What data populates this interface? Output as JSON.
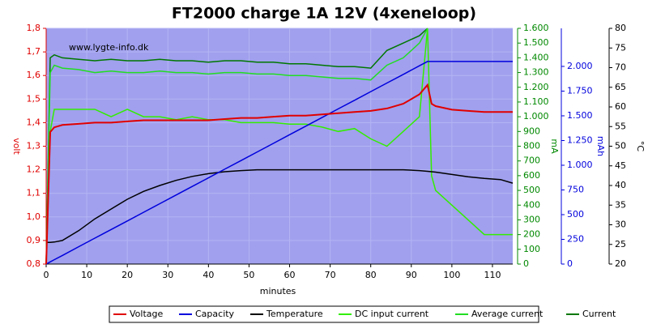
{
  "chart_data": {
    "type": "line",
    "title": "FT2000 charge 1A 12V (4xeneloop)",
    "annotation": "www.lygte-info.dk",
    "xlabel": "minutes",
    "ylabel": "volt",
    "y2label": "mA",
    "y3label": "mAh",
    "y4label": "°C",
    "grid": true,
    "legend": "bottom",
    "background": "#a0a0ee",
    "xlim": [
      0,
      115
    ],
    "xticks": [
      0,
      10,
      20,
      30,
      40,
      50,
      60,
      70,
      80,
      90,
      100,
      110
    ],
    "ylim": [
      0.8,
      1.8
    ],
    "yticks": [
      {
        "value": 0.8,
        "label": "0,8"
      },
      {
        "value": 0.9,
        "label": "0,9"
      },
      {
        "value": 1.0,
        "label": "1,0"
      },
      {
        "value": 1.1,
        "label": "1,1"
      },
      {
        "value": 1.2,
        "label": "1,2"
      },
      {
        "value": 1.3,
        "label": "1,3"
      },
      {
        "value": 1.4,
        "label": "1,4"
      },
      {
        "value": 1.5,
        "label": "1,5"
      },
      {
        "value": 1.6,
        "label": "1,6"
      },
      {
        "value": 1.7,
        "label": "1,7"
      },
      {
        "value": 1.8,
        "label": "1,8"
      }
    ],
    "y2lim": [
      0,
      1600
    ],
    "y2ticks": [
      0,
      100,
      200,
      300,
      400,
      500,
      600,
      700,
      800,
      900,
      {
        "value": 1000,
        "label": "1.000"
      },
      {
        "value": 1100,
        "label": "1.100"
      },
      {
        "value": 1200,
        "label": "1.200"
      },
      {
        "value": 1300,
        "label": "1.300"
      },
      {
        "value": 1400,
        "label": "1.400"
      },
      {
        "value": 1500,
        "label": "1.500"
      },
      {
        "value": 1600,
        "label": "1.600"
      }
    ],
    "y3lim": [
      0,
      2385
    ],
    "y3ticks": [
      0,
      250,
      500,
      750,
      {
        "value": 1000,
        "label": "1.000"
      },
      {
        "value": 1250,
        "label": "1.250"
      },
      {
        "value": 1500,
        "label": "1.500"
      },
      {
        "value": 1750,
        "label": "1.750"
      },
      {
        "value": 2000,
        "label": "2.000"
      }
    ],
    "y4lim": [
      20,
      80
    ],
    "y4ticks": [
      20,
      25,
      30,
      35,
      40,
      45,
      50,
      55,
      60,
      65,
      70,
      75,
      80
    ],
    "x": [
      0,
      1,
      2,
      4,
      8,
      12,
      16,
      20,
      24,
      28,
      32,
      36,
      40,
      44,
      48,
      52,
      56,
      60,
      64,
      68,
      72,
      76,
      80,
      84,
      88,
      92,
      94,
      95,
      96,
      100,
      104,
      108,
      112,
      115
    ],
    "series": [
      {
        "name": "Voltage",
        "color": "#e00000",
        "axis": "y",
        "values": [
          0.8,
          1.36,
          1.38,
          1.39,
          1.395,
          1.4,
          1.4,
          1.405,
          1.41,
          1.41,
          1.41,
          1.41,
          1.41,
          1.415,
          1.42,
          1.42,
          1.425,
          1.43,
          1.43,
          1.435,
          1.44,
          1.445,
          1.45,
          1.46,
          1.48,
          1.52,
          1.56,
          1.48,
          1.47,
          1.455,
          1.45,
          1.445,
          1.445,
          1.445
        ]
      },
      {
        "name": "Capacity",
        "color": "#0000dd",
        "axis": "y3",
        "values": [
          0,
          22,
          44,
          87,
          175,
          262,
          349,
          436,
          524,
          611,
          698,
          785,
          872,
          960,
          1047,
          1134,
          1221,
          1309,
          1396,
          1483,
          1570,
          1657,
          1745,
          1832,
          1919,
          2006,
          2050,
          2050,
          2050,
          2050,
          2050,
          2050,
          2050,
          2050
        ]
      },
      {
        "name": "Temperature",
        "color": "#000000",
        "axis": "y4",
        "values": [
          25.5,
          25.5,
          25.6,
          26,
          28.5,
          31.5,
          34,
          36.5,
          38.5,
          40,
          41.3,
          42.3,
          43,
          43.5,
          43.8,
          44,
          44,
          44,
          44,
          44,
          44,
          44,
          44,
          44,
          44,
          43.8,
          43.6,
          43.5,
          43.4,
          42.8,
          42.2,
          41.8,
          41.5,
          40.6
        ]
      },
      {
        "name": "DC input current",
        "color": "#33ee00",
        "axis": "y2",
        "values": [
          0,
          900,
          1050,
          1050,
          1050,
          1050,
          1000,
          1050,
          1000,
          1000,
          980,
          1000,
          980,
          980,
          960,
          960,
          960,
          950,
          950,
          930,
          900,
          920,
          850,
          800,
          900,
          1000,
          1600,
          600,
          500,
          400,
          300,
          200,
          200,
          200
        ]
      },
      {
        "name": "Average current",
        "color": "#22dd22",
        "axis": "y2",
        "values": [
          0,
          1300,
          1350,
          1330,
          1320,
          1300,
          1310,
          1300,
          1300,
          1310,
          1300,
          1300,
          1290,
          1300,
          1300,
          1290,
          1290,
          1280,
          1280,
          1270,
          1260,
          1260,
          1250,
          1350,
          1400,
          1500,
          1600,
          null,
          null,
          null,
          null,
          null,
          null,
          null
        ]
      },
      {
        "name": "Current",
        "color": "#007700",
        "axis": "y2",
        "values": [
          0,
          1400,
          1420,
          1400,
          1390,
          1380,
          1390,
          1380,
          1380,
          1390,
          1380,
          1380,
          1370,
          1380,
          1380,
          1370,
          1370,
          1360,
          1360,
          1350,
          1340,
          1340,
          1330,
          1450,
          1500,
          1550,
          1600,
          null,
          null,
          null,
          null,
          null,
          null,
          null
        ]
      }
    ]
  }
}
